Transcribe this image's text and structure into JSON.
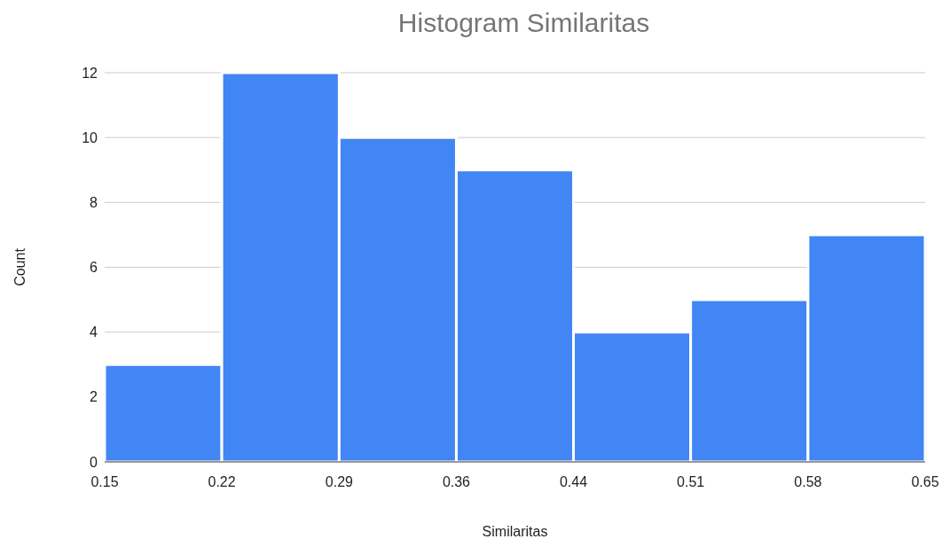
{
  "chart_data": {
    "type": "histogram",
    "title": "Histogram Similaritas",
    "xlabel": "Similaritas",
    "ylabel": "Count",
    "bins": [
      0.15,
      0.2214,
      0.2929,
      0.3643,
      0.4357,
      0.5071,
      0.5786,
      0.65
    ],
    "values": [
      3,
      12,
      10,
      9,
      4,
      5,
      7
    ],
    "color": "#4285f4",
    "xlim": [
      0.15,
      0.65
    ],
    "xticks": [
      0.15,
      {
        "value": 0.2214,
        "label": "0.22"
      },
      {
        "value": 0.2929,
        "label": "0.29"
      },
      {
        "value": 0.3643,
        "label": "0.36"
      },
      {
        "value": 0.4357,
        "label": "0.44"
      },
      {
        "value": 0.5071,
        "label": "0.51"
      },
      {
        "value": 0.5786,
        "label": "0.58"
      },
      0.65
    ],
    "ylim": [
      0,
      12
    ],
    "yticks": [
      0,
      2,
      4,
      6,
      8,
      10,
      12
    ],
    "grid": "y"
  }
}
